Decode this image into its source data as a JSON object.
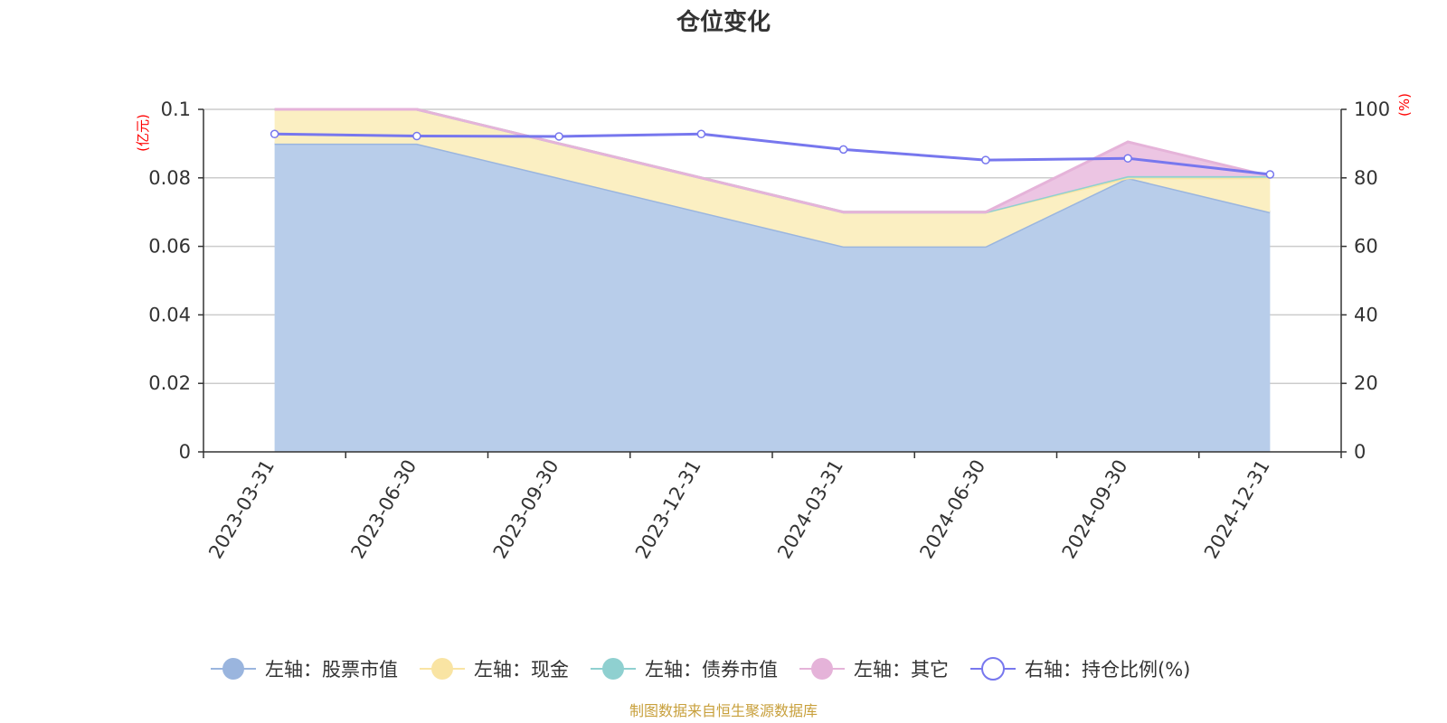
{
  "chart_data": {
    "type": "area",
    "title": "仓位变化",
    "left_axis": {
      "unit": "(亿元)",
      "ylim": [
        0,
        0.1
      ],
      "ticks": [
        "0",
        "0.02",
        "0.04",
        "0.06",
        "0.08",
        "0.1"
      ]
    },
    "right_axis": {
      "unit": "(%)",
      "ylim": [
        0,
        100
      ],
      "ticks": [
        "0",
        "20",
        "40",
        "60",
        "80",
        "100"
      ]
    },
    "categories": [
      "2023-03-31",
      "2023-06-30",
      "2023-09-30",
      "2023-12-31",
      "2024-03-31",
      "2024-06-30",
      "2024-09-30",
      "2024-12-31"
    ],
    "series": [
      {
        "name": "左轴：股票市值",
        "axis": "left",
        "stack": true,
        "color": "#9ab5de",
        "fill": "#b8cdea",
        "values": [
          0.09,
          0.09,
          0.08,
          0.07,
          0.06,
          0.06,
          0.08,
          0.07
        ]
      },
      {
        "name": "左轴：现金",
        "axis": "left",
        "stack": true,
        "color": "#f9e4a3",
        "fill": "#fbefc2",
        "values": [
          0.01,
          0.01,
          0.01,
          0.01,
          0.01,
          0.01,
          0.0,
          0.01
        ]
      },
      {
        "name": "左轴：债券市值",
        "axis": "left",
        "stack": true,
        "color": "#8fd0d0",
        "fill": "#a8d9d9",
        "values": [
          0,
          0,
          0,
          0,
          0,
          0,
          0.0005,
          0.0005
        ]
      },
      {
        "name": "左轴：其它",
        "axis": "left",
        "stack": true,
        "color": "#e5b3d9",
        "fill": "#ecc5e3",
        "values": [
          0,
          0,
          0,
          0,
          0,
          0,
          0.01,
          0
        ]
      },
      {
        "name": "右轴：持仓比例(%)",
        "axis": "right",
        "type": "line",
        "color": "#7777ee",
        "values": [
          92.8,
          92.2,
          92.1,
          92.8,
          88.3,
          85.2,
          85.7,
          81.0
        ]
      }
    ],
    "grid": true,
    "legend_position": "bottom"
  },
  "footer": "制图数据来自恒生聚源数据库"
}
